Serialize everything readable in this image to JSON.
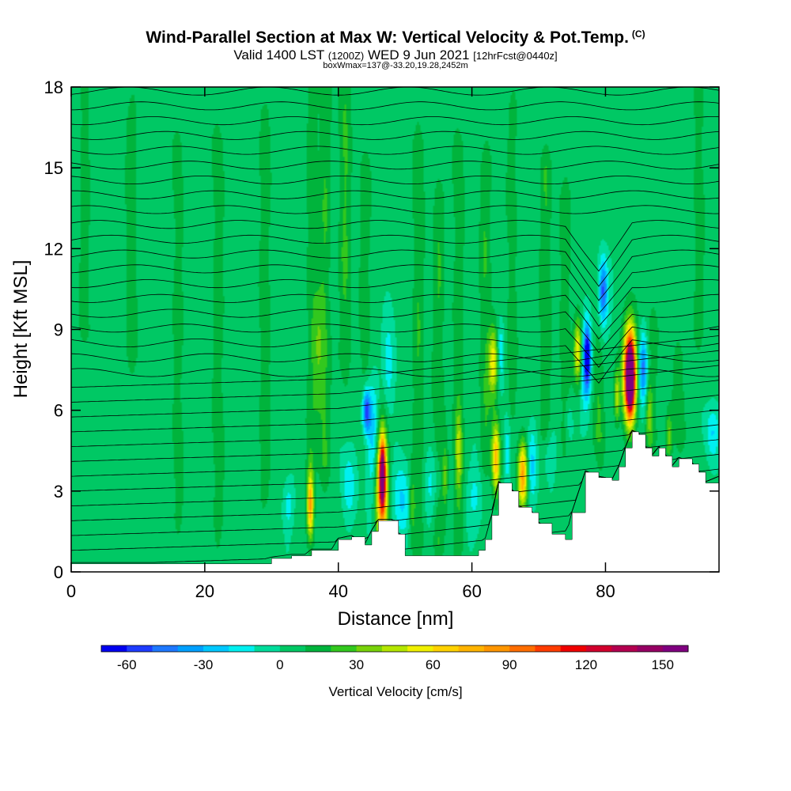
{
  "header": {
    "title": "Wind-Parallel Section at Max W: Vertical Velocity & Pot.Temp.",
    "copyright": "(C)",
    "valid_label": "Valid 1400 LST",
    "valid_utc": "(1200Z)",
    "valid_date": "WED 9 Jun 2021",
    "forecast": "[12hrFcst@0440z]",
    "box_info": "boxWmax=137@-33.20,19.28,2452m"
  },
  "chart_data": {
    "type": "heatmap",
    "title": "Wind-Parallel Section at Max W: Vertical Velocity & Pot.Temp.",
    "xlabel": "Distance [nm]",
    "ylabel": "Height [Kft MSL]",
    "xlim": [
      0,
      97
    ],
    "ylim": [
      0,
      18
    ],
    "x_ticks": [
      "0",
      "20",
      "40",
      "60",
      "80"
    ],
    "y_ticks": [
      "0",
      "3",
      "6",
      "9",
      "12",
      "15",
      "18"
    ],
    "colorbar": {
      "label": "Vertical Velocity [cm/s]",
      "ticks": [
        "-60",
        "-30",
        "0",
        "30",
        "60",
        "90",
        "120",
        "150"
      ],
      "levels": [
        -70,
        -60,
        -50,
        -40,
        -30,
        -20,
        -10,
        0,
        10,
        20,
        30,
        40,
        50,
        60,
        70,
        80,
        90,
        100,
        110,
        120,
        130,
        140,
        150,
        160
      ],
      "colors": [
        "#0000f0",
        "#1e3cff",
        "#1e78ff",
        "#00a0ff",
        "#00c8ff",
        "#00f0f0",
        "#00dc9b",
        "#00c864",
        "#00b43c",
        "#32c81e",
        "#78d20a",
        "#b4e600",
        "#f0f000",
        "#ffd200",
        "#ffb400",
        "#ff9600",
        "#ff6e00",
        "#ff3c00",
        "#f00000",
        "#d2002d",
        "#b40050",
        "#960064",
        "#800080"
      ]
    },
    "terrain": [
      [
        0,
        0.3
      ],
      [
        27,
        0.3
      ],
      [
        30,
        0.5
      ],
      [
        33,
        0.6
      ],
      [
        35,
        0.6
      ],
      [
        36,
        0.8
      ],
      [
        39,
        0.8
      ],
      [
        40,
        1.2
      ],
      [
        42,
        1.3
      ],
      [
        44,
        1.0
      ],
      [
        45,
        1.5
      ],
      [
        46,
        1.9
      ],
      [
        48,
        1.9
      ],
      [
        49,
        1.4
      ],
      [
        50,
        0.6
      ],
      [
        56,
        0.6
      ],
      [
        60,
        0.6
      ],
      [
        61,
        0.8
      ],
      [
        62,
        1.2
      ],
      [
        63,
        2.1
      ],
      [
        64,
        3.3
      ],
      [
        66,
        3.0
      ],
      [
        67,
        2.4
      ],
      [
        69,
        2.2
      ],
      [
        70,
        1.8
      ],
      [
        72,
        1.4
      ],
      [
        74,
        1.2
      ],
      [
        75,
        2.2
      ],
      [
        77,
        3.7
      ],
      [
        79,
        3.5
      ],
      [
        81,
        3.4
      ],
      [
        82,
        3.9
      ],
      [
        83,
        4.6
      ],
      [
        84,
        5.2
      ],
      [
        85,
        5.1
      ],
      [
        86,
        4.6
      ],
      [
        87,
        4.3
      ],
      [
        88,
        4.6
      ],
      [
        89,
        4.3
      ],
      [
        90,
        3.9
      ],
      [
        91,
        4.2
      ],
      [
        93,
        4.0
      ],
      [
        94,
        3.7
      ],
      [
        95,
        3.3
      ],
      [
        97,
        3.5
      ]
    ],
    "background_w": 3,
    "updraft_bands": [
      {
        "x": 2,
        "y0": 9,
        "y1": 18,
        "w": 12
      },
      {
        "x": 9,
        "y0": 8,
        "y1": 17,
        "w": 14
      },
      {
        "x": 16,
        "y0": 2,
        "y1": 16,
        "w": 12
      },
      {
        "x": 22,
        "y0": 2,
        "y1": 16,
        "w": 14
      },
      {
        "x": 29,
        "y0": 3,
        "y1": 17,
        "w": 14
      },
      {
        "x": 36,
        "y0": 4,
        "y1": 18,
        "w": 12
      },
      {
        "x": 38,
        "y0": 4,
        "y1": 18,
        "w": 16
      },
      {
        "x": 41,
        "y0": 8,
        "y1": 18,
        "w": 18
      },
      {
        "x": 44,
        "y0": 6,
        "y1": 15,
        "w": 14
      },
      {
        "x": 52,
        "y0": 1,
        "y1": 16,
        "w": 16
      },
      {
        "x": 55,
        "y0": 1,
        "y1": 14,
        "w": 16
      },
      {
        "x": 58,
        "y0": 1,
        "y1": 16,
        "w": 14
      },
      {
        "x": 62,
        "y0": 4,
        "y1": 15,
        "w": 16
      },
      {
        "x": 66,
        "y0": 6,
        "y1": 17,
        "w": 12
      },
      {
        "x": 71,
        "y0": 5,
        "y1": 15,
        "w": 16
      },
      {
        "x": 74,
        "y0": 5,
        "y1": 14,
        "w": 14
      },
      {
        "x": 79,
        "y0": 5,
        "y1": 11,
        "w": 20
      },
      {
        "x": 87,
        "y0": 5,
        "y1": 9,
        "w": 18
      },
      {
        "x": 91,
        "y0": 5,
        "y1": 8,
        "w": 14
      },
      {
        "x": 94,
        "y0": 9,
        "y1": 18,
        "w": 12
      }
    ],
    "cells": [
      {
        "x": 35.8,
        "y": 2.5,
        "rx": 0.5,
        "ry": 1.2,
        "w": 80
      },
      {
        "x": 46.5,
        "y": 3.2,
        "rx": 0.9,
        "ry": 2.3,
        "w": 92
      },
      {
        "x": 46.6,
        "y": 3.6,
        "rx": 0.4,
        "ry": 1.1,
        "w": 110
      },
      {
        "x": 63.6,
        "y": 4.2,
        "rx": 0.6,
        "ry": 1.3,
        "w": 72
      },
      {
        "x": 63.2,
        "y": 7.8,
        "rx": 0.7,
        "ry": 1.2,
        "w": 55
      },
      {
        "x": 67.6,
        "y": 3.6,
        "rx": 0.7,
        "ry": 1.2,
        "w": 78
      },
      {
        "x": 75.9,
        "y": 8.2,
        "rx": 0.6,
        "ry": 1.2,
        "w": 58
      },
      {
        "x": 83.6,
        "y": 7.4,
        "rx": 1.0,
        "ry": 1.8,
        "w": 115
      },
      {
        "x": 83.7,
        "y": 7.2,
        "rx": 0.6,
        "ry": 1.2,
        "w": 138
      },
      {
        "x": 81.7,
        "y": 6.5,
        "rx": 0.4,
        "ry": 1.0,
        "w": 40
      },
      {
        "x": 86.5,
        "y": 6.2,
        "rx": 0.5,
        "ry": 1.3,
        "w": 30
      },
      {
        "x": 89.5,
        "y": 5.0,
        "rx": 0.5,
        "ry": 0.9,
        "w": 30
      },
      {
        "x": 58.0,
        "y": 4.5,
        "rx": 0.5,
        "ry": 1.6,
        "w": 30
      },
      {
        "x": 56.0,
        "y": 3.5,
        "rx": 0.4,
        "ry": 1.2,
        "w": 28
      },
      {
        "x": 51.0,
        "y": 2.5,
        "rx": 0.5,
        "ry": 1.3,
        "w": 25
      },
      {
        "x": 37.0,
        "y": 8.0,
        "rx": 0.8,
        "ry": 2.5,
        "w": 20
      },
      {
        "x": 44.2,
        "y": 6.0,
        "rx": 0.6,
        "ry": 0.8,
        "w": -65
      },
      {
        "x": 45.2,
        "y": 5.0,
        "rx": 1.0,
        "ry": 2.2,
        "w": -30
      },
      {
        "x": 47.5,
        "y": 7.5,
        "rx": 0.9,
        "ry": 1.8,
        "w": -20
      },
      {
        "x": 41.5,
        "y": 3.2,
        "rx": 1.0,
        "ry": 1.3,
        "w": -20
      },
      {
        "x": 32.5,
        "y": 2.5,
        "rx": 0.8,
        "ry": 0.9,
        "w": -18
      },
      {
        "x": 49.5,
        "y": 2.6,
        "rx": 1.3,
        "ry": 1.4,
        "w": -25
      },
      {
        "x": 54.0,
        "y": 3.2,
        "rx": 1.5,
        "ry": 1.3,
        "w": -18
      },
      {
        "x": 60.5,
        "y": 2.8,
        "rx": 1.4,
        "ry": 1.3,
        "w": -16
      },
      {
        "x": 65.3,
        "y": 4.5,
        "rx": 0.5,
        "ry": 1.5,
        "w": -22
      },
      {
        "x": 64.3,
        "y": 8.2,
        "rx": 0.5,
        "ry": 1.2,
        "w": -22
      },
      {
        "x": 69.0,
        "y": 4.0,
        "rx": 0.7,
        "ry": 1.4,
        "w": -24
      },
      {
        "x": 71.5,
        "y": 4.5,
        "rx": 1.0,
        "ry": 1.1,
        "w": -16
      },
      {
        "x": 77.3,
        "y": 8.0,
        "rx": 0.5,
        "ry": 1.1,
        "w": -62
      },
      {
        "x": 77.0,
        "y": 7.5,
        "rx": 0.8,
        "ry": 1.8,
        "w": -30
      },
      {
        "x": 79.6,
        "y": 10.5,
        "rx": 0.6,
        "ry": 1.1,
        "w": -45
      },
      {
        "x": 79.3,
        "y": 10.0,
        "rx": 1.1,
        "ry": 1.8,
        "w": -25
      },
      {
        "x": 85.6,
        "y": 7.6,
        "rx": 0.6,
        "ry": 1.2,
        "w": -35
      },
      {
        "x": 86.3,
        "y": 7.2,
        "rx": 1.1,
        "ry": 1.7,
        "w": -20
      },
      {
        "x": 74.5,
        "y": 5.6,
        "rx": 0.6,
        "ry": 1.0,
        "w": -16
      },
      {
        "x": 96.0,
        "y": 5.2,
        "rx": 1.0,
        "ry": 1.0,
        "w": -22
      }
    ]
  }
}
